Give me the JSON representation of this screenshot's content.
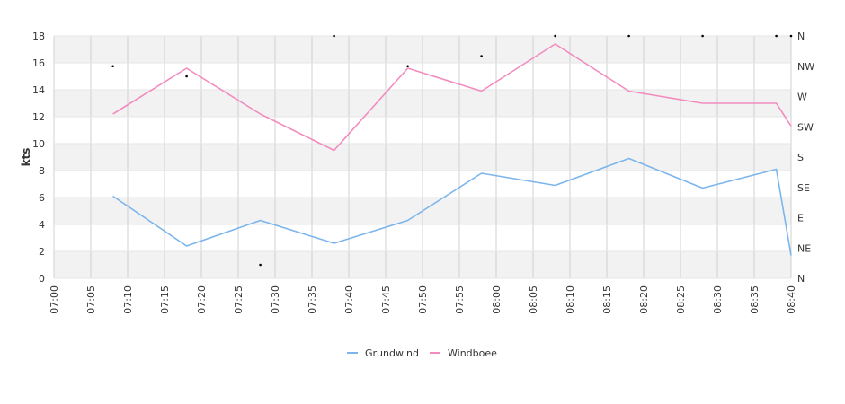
{
  "chart_data": {
    "type": "line",
    "ylabel": "kts",
    "ylim": [
      0,
      18
    ],
    "y_ticks": [
      "0",
      "2",
      "4",
      "6",
      "8",
      "10",
      "12",
      "14",
      "16",
      "18"
    ],
    "right_axis_labels": [
      "N",
      "NE",
      "E",
      "SE",
      "S",
      "SW",
      "W",
      "NW",
      "N"
    ],
    "x_ticks": [
      "07:00",
      "07:05",
      "07:10",
      "07:15",
      "07:20",
      "07:25",
      "07:30",
      "07:35",
      "07:40",
      "07:45",
      "07:50",
      "07:55",
      "08:00",
      "08:05",
      "08:10",
      "08:15",
      "08:20",
      "08:25",
      "08:30",
      "08:35",
      "08:40"
    ],
    "x": [
      "07:08",
      "07:18",
      "07:28",
      "07:38",
      "07:48",
      "07:58",
      "08:08",
      "08:18",
      "08:28",
      "08:38",
      "08:40"
    ],
    "series": [
      {
        "name": "Grundwind",
        "color": "#7cb5ec",
        "values": [
          6.1,
          2.4,
          4.3,
          2.6,
          4.3,
          7.8,
          6.9,
          8.9,
          6.7,
          8.1,
          1.7
        ]
      },
      {
        "name": "Windboee",
        "color": "#f28cbf",
        "values": [
          12.2,
          15.6,
          12.2,
          9.5,
          15.6,
          13.9,
          17.4,
          13.9,
          13.0,
          13.0,
          11.3
        ]
      }
    ],
    "direction_markers": {
      "x": [
        "07:08",
        "07:18",
        "07:28",
        "07:38",
        "07:48",
        "07:58",
        "08:08",
        "08:18",
        "08:28",
        "08:38",
        "08:40"
      ],
      "values_deg": [
        315,
        300,
        20,
        360,
        315,
        330,
        360,
        360,
        360,
        360,
        360
      ]
    },
    "grid": true,
    "legend_position": "bottom"
  }
}
